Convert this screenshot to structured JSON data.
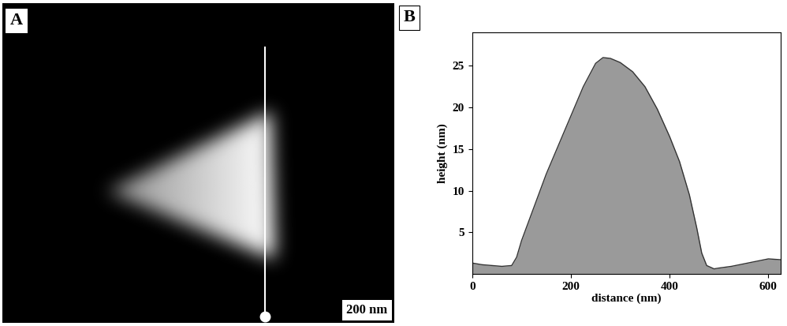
{
  "chart_data": [
    {
      "type": "image",
      "title": "A",
      "annotations": [
        "200 nm"
      ]
    },
    {
      "type": "area",
      "title": "B",
      "x_label": "distance (nm)",
      "y_label": "height (nm)",
      "x": [
        0,
        20,
        40,
        60,
        80,
        90,
        100,
        125,
        150,
        175,
        200,
        225,
        250,
        265,
        280,
        300,
        325,
        350,
        375,
        400,
        420,
        440,
        455,
        465,
        475,
        490,
        500,
        525,
        550,
        575,
        600,
        625
      ],
      "values": [
        1.3,
        1.1,
        1.0,
        0.9,
        1.0,
        2.0,
        4.0,
        8.0,
        12,
        15.5,
        19,
        22.5,
        25.3,
        26,
        25.9,
        25.4,
        24.3,
        22.5,
        19.8,
        16.5,
        13.5,
        9.5,
        5.5,
        2.5,
        1.0,
        0.6,
        0.7,
        0.9,
        1.2,
        1.5,
        1.8,
        1.7
      ],
      "color": "#9a9a9a",
      "xlim": [
        0,
        625
      ],
      "ylim": [
        0,
        29
      ],
      "xticks": [
        0,
        200,
        400,
        600
      ],
      "yticks": [
        5,
        10,
        15,
        20,
        25
      ]
    }
  ]
}
